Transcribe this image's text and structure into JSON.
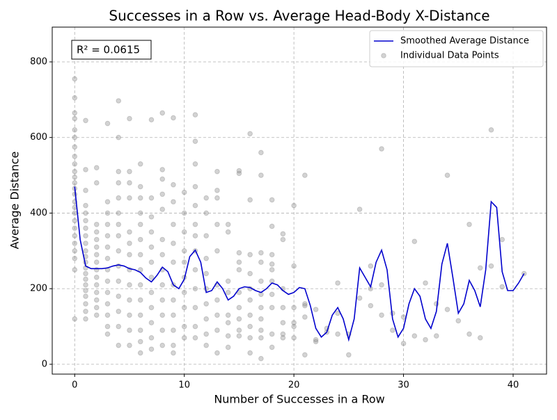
{
  "chart_data": {
    "type": "line",
    "title": "Successes in a Row vs. Average Head-Body X-Distance",
    "x_label": "Number of Successes in a Row",
    "y_label": "Average Distance",
    "annotation": "R² = 0.0615",
    "xlim": [
      -2.05,
      43.05
    ],
    "ylim": [
      -26,
      892
    ],
    "xticks": [
      0,
      10,
      20,
      30,
      40
    ],
    "yticks": [
      0,
      200,
      400,
      600,
      800
    ],
    "grid": true,
    "legend": "upper right",
    "series": [
      {
        "name": "Smoothed Average Distance",
        "type": "line",
        "color": "#0000cd",
        "x": [
          0,
          0.5,
          1,
          1.5,
          2,
          2.5,
          3,
          3.5,
          4,
          4.5,
          5,
          5.5,
          6,
          6.5,
          7,
          7.5,
          8,
          8.5,
          9,
          9.5,
          10,
          10.5,
          11,
          11.5,
          12,
          12.5,
          13,
          13.5,
          14,
          14.5,
          15,
          15.5,
          16,
          16.5,
          17,
          17.5,
          18,
          18.5,
          19,
          19.5,
          20,
          20.5,
          21,
          21.5,
          22,
          22.5,
          23,
          23.5,
          24,
          24.5,
          25,
          25.5,
          26,
          26.5,
          27,
          27.5,
          28,
          28.5,
          29,
          29.5,
          30,
          30.5,
          31,
          31.5,
          32,
          32.5,
          33,
          33.5,
          34,
          34.5,
          35,
          35.5,
          36,
          36.5,
          37,
          37.5,
          38,
          38.5,
          39,
          39.5,
          40,
          40.5,
          41
        ],
        "values": [
          470,
          330,
          260,
          253,
          253,
          253,
          255,
          260,
          263,
          260,
          253,
          250,
          243,
          228,
          218,
          235,
          257,
          245,
          210,
          200,
          225,
          285,
          302,
          270,
          190,
          195,
          218,
          200,
          170,
          180,
          200,
          205,
          203,
          195,
          190,
          200,
          215,
          210,
          195,
          185,
          190,
          203,
          200,
          155,
          95,
          72,
          85,
          130,
          150,
          120,
          65,
          120,
          255,
          230,
          205,
          270,
          302,
          250,
          120,
          72,
          95,
          160,
          200,
          180,
          120,
          95,
          140,
          265,
          320,
          230,
          135,
          160,
          222,
          195,
          152,
          250,
          430,
          415,
          245,
          195,
          195,
          215,
          240
        ]
      },
      {
        "name": "Individual Data Points",
        "type": "scatter",
        "color": "#808080",
        "x": [
          0,
          0,
          0,
          0,
          0,
          0,
          0,
          0,
          0,
          0,
          0,
          0,
          0,
          0,
          0,
          0,
          0,
          0,
          0,
          0,
          0,
          0,
          0,
          0,
          0,
          1,
          1,
          1,
          1,
          1,
          1,
          1,
          1,
          1,
          1,
          1,
          1,
          1,
          1,
          1,
          1,
          1,
          1,
          1,
          1,
          1,
          2,
          2,
          2,
          2,
          2,
          2,
          2,
          2,
          2,
          2,
          2,
          2,
          2,
          2,
          2,
          3,
          3,
          3,
          3,
          3,
          3,
          3,
          3,
          3,
          3,
          3,
          3,
          3,
          3,
          4,
          4,
          4,
          4,
          4,
          4,
          4,
          4,
          4,
          4,
          4,
          4,
          4,
          4,
          4,
          5,
          5,
          5,
          5,
          5,
          5,
          5,
          5,
          5,
          5,
          5,
          5,
          5,
          6,
          6,
          6,
          6,
          6,
          6,
          6,
          6,
          6,
          6,
          6,
          6,
          6,
          6,
          7,
          7,
          7,
          7,
          7,
          7,
          7,
          7,
          7,
          7,
          7,
          7,
          8,
          8,
          8,
          8,
          8,
          8,
          8,
          8,
          8,
          8,
          8,
          8,
          8,
          9,
          9,
          9,
          9,
          9,
          9,
          9,
          9,
          9,
          9,
          9,
          9,
          10,
          10,
          10,
          10,
          10,
          10,
          10,
          10,
          10,
          10,
          11,
          11,
          11,
          11,
          11,
          11,
          11,
          11,
          11,
          11,
          11,
          11,
          11,
          12,
          12,
          12,
          12,
          12,
          12,
          12,
          12,
          12,
          12,
          13,
          13,
          13,
          13,
          13,
          13,
          13,
          13,
          13,
          13,
          14,
          14,
          14,
          14,
          14,
          14,
          14,
          14,
          15,
          15,
          15,
          15,
          15,
          15,
          15,
          15,
          15,
          15,
          16,
          16,
          16,
          16,
          16,
          16,
          16,
          16,
          16,
          16,
          17,
          17,
          17,
          17,
          17,
          17,
          17,
          17,
          17,
          17,
          17,
          18,
          18,
          18,
          18,
          18,
          18,
          18,
          18,
          18,
          18,
          19,
          19,
          19,
          19,
          19,
          19,
          19,
          20,
          20,
          20,
          20,
          20,
          20,
          21,
          21,
          21,
          21,
          21,
          22,
          22,
          22,
          23,
          23,
          24,
          24,
          24,
          25,
          25,
          26,
          26,
          27,
          27,
          27,
          28,
          28,
          28,
          29,
          29,
          30,
          30,
          31,
          31,
          32,
          32,
          33,
          33,
          34,
          34,
          35,
          36,
          36,
          37,
          37,
          38,
          38,
          39,
          39,
          41
        ],
        "values": [
          755,
          705,
          665,
          650,
          620,
          600,
          575,
          550,
          530,
          510,
          495,
          480,
          465,
          450,
          430,
          415,
          400,
          380,
          360,
          340,
          320,
          300,
          280,
          250,
          120,
          645,
          515,
          460,
          420,
          400,
          380,
          360,
          340,
          320,
          300,
          285,
          270,
          255,
          240,
          225,
          210,
          195,
          180,
          160,
          140,
          120,
          520,
          480,
          370,
          350,
          330,
          310,
          290,
          270,
          250,
          230,
          210,
          190,
          170,
          150,
          130,
          637,
          430,
          400,
          370,
          340,
          310,
          280,
          250,
          220,
          190,
          160,
          130,
          100,
          80,
          697,
          600,
          510,
          480,
          440,
          400,
          370,
          340,
          300,
          260,
          220,
          180,
          140,
          100,
          50,
          650,
          510,
          480,
          440,
          350,
          320,
          290,
          250,
          210,
          170,
          130,
          90,
          50,
          530,
          470,
          440,
          400,
          370,
          330,
          290,
          250,
          210,
          170,
          130,
          90,
          60,
          30,
          647,
          440,
          390,
          350,
          310,
          270,
          230,
          190,
          150,
          110,
          70,
          40,
          665,
          515,
          490,
          450,
          410,
          330,
          290,
          250,
          210,
          170,
          130,
          90,
          50,
          652,
          475,
          430,
          370,
          320,
          270,
          210,
          170,
          130,
          90,
          50,
          30,
          455,
          400,
          350,
          300,
          270,
          230,
          190,
          150,
          100,
          70,
          660,
          590,
          530,
          470,
          420,
          370,
          340,
          300,
          250,
          200,
          150,
          100,
          70,
          440,
          400,
          340,
          280,
          240,
          200,
          160,
          120,
          80,
          50,
          510,
          460,
          440,
          370,
          300,
          210,
          170,
          130,
          90,
          30,
          370,
          350,
          220,
          190,
          130,
          110,
          75,
          45,
          512,
          505,
          295,
          270,
          250,
          190,
          150,
          120,
          90,
          75,
          610,
          435,
          290,
          240,
          200,
          170,
          130,
          100,
          70,
          30,
          560,
          500,
          295,
          270,
          220,
          185,
          150,
          120,
          90,
          70,
          15,
          435,
          365,
          290,
          265,
          250,
          220,
          185,
          150,
          80,
          45,
          345,
          330,
          200,
          150,
          110,
          80,
          70,
          420,
          260,
          150,
          110,
          100,
          70,
          500,
          160,
          155,
          125,
          25,
          145,
          65,
          60,
          95,
          85,
          215,
          135,
          80,
          80,
          25,
          410,
          175,
          260,
          200,
          155,
          570,
          210,
          130,
          135,
          90,
          125,
          55,
          325,
          75,
          215,
          65,
          160,
          75,
          500,
          145,
          115,
          370,
          80,
          255,
          70,
          620,
          260,
          330,
          205,
          240
        ]
      }
    ]
  }
}
